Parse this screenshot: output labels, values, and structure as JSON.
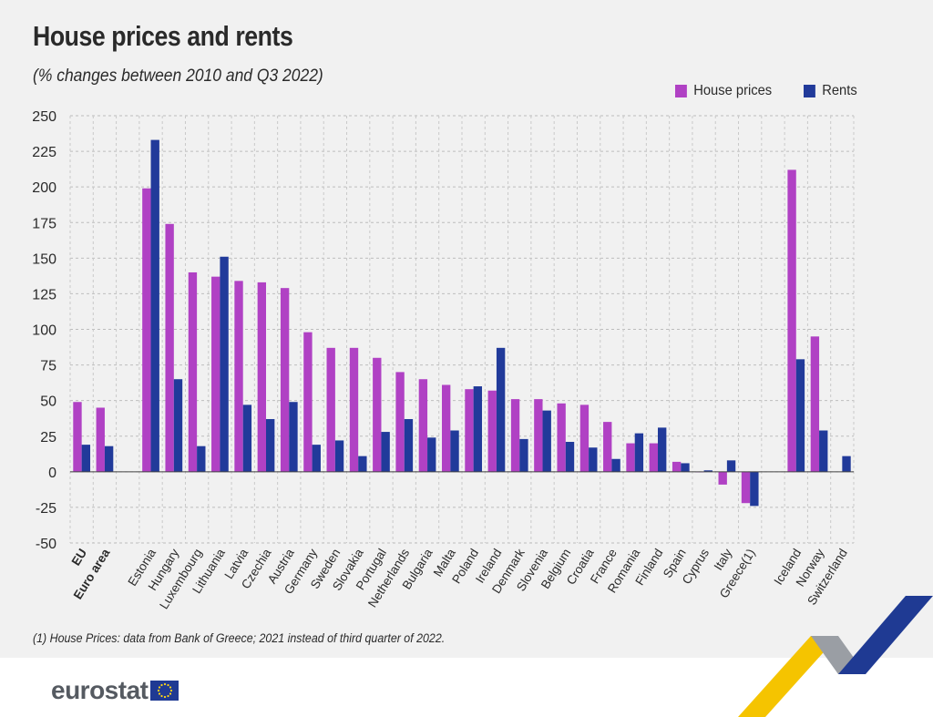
{
  "header": {
    "title": "House prices and rents",
    "subtitle": "(% changes between 2010 and Q3 2022)"
  },
  "legend": {
    "house_prices_label": "House prices",
    "rents_label": "Rents"
  },
  "colors": {
    "house_prices": "#b041c4",
    "rents": "#213a9a",
    "accent_yellow": "#f5c400",
    "accent_grey": "#9a9ea4",
    "accent_blue": "#1f3a93"
  },
  "footnote": "(1) House Prices: data from Bank of Greece; 2021 instead of third quarter of 2022.",
  "brand": {
    "logo_text": "eurostat",
    "logo_icon": "eu-flag-icon"
  },
  "chart_data": {
    "type": "bar",
    "categories": [
      "EU",
      "Euro area",
      "",
      "Estonia",
      "Hungary",
      "Luxembourg",
      "Lithuania",
      "Latvia",
      "Czechia",
      "Austria",
      "Germany",
      "Sweden",
      "Slovakia",
      "Portugal",
      "Netherlands",
      "Bulgaria",
      "Malta",
      "Poland",
      "Ireland",
      "Denmark",
      "Slovenia",
      "Belgium",
      "Croatia",
      "France",
      "Romania",
      "Finland",
      "Spain",
      "Cyprus",
      "Italy",
      "Greece(1)",
      "",
      "Iceland",
      "Norway",
      "Switzerland"
    ],
    "bold_categories": [
      "EU",
      "Euro area"
    ],
    "series": [
      {
        "name": "House prices",
        "values": [
          49,
          45,
          null,
          199,
          174,
          140,
          137,
          134,
          133,
          129,
          98,
          87,
          87,
          80,
          70,
          65,
          61,
          58,
          57,
          51,
          51,
          48,
          47,
          35,
          20,
          20,
          7,
          0,
          -9,
          -22,
          null,
          212,
          95,
          null
        ]
      },
      {
        "name": "Rents",
        "values": [
          19,
          18,
          null,
          233,
          65,
          18,
          151,
          47,
          37,
          49,
          19,
          22,
          11,
          28,
          37,
          24,
          29,
          60,
          87,
          23,
          43,
          21,
          17,
          9,
          27,
          31,
          6,
          1,
          8,
          -24,
          null,
          79,
          29,
          11
        ]
      }
    ],
    "y_ticks": [
      250,
      225,
      200,
      175,
      150,
      125,
      100,
      75,
      50,
      25,
      0,
      -25,
      -50
    ],
    "ylim": [
      -50,
      250
    ],
    "grid": true,
    "legend_position": "top-right"
  }
}
